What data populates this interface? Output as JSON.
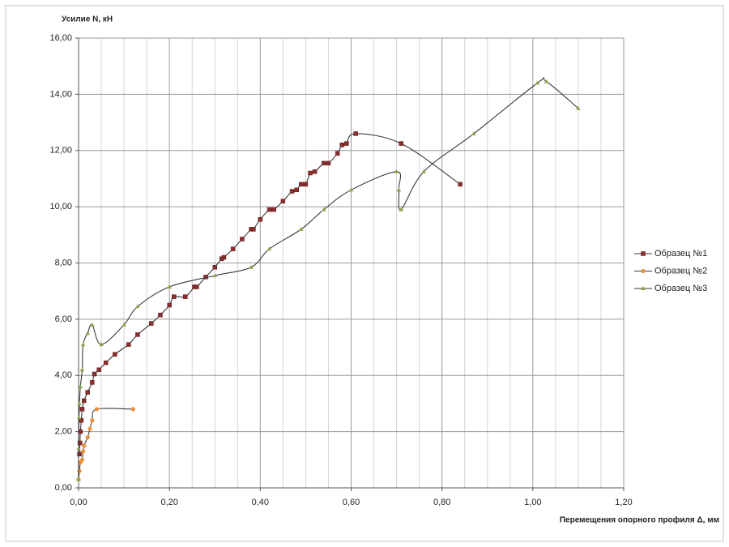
{
  "chart_data": {
    "type": "line",
    "smooth": true,
    "grid": true,
    "ylabel": "Усилие N, кН",
    "xlabel": "Перемещения опорного профиля Δ, мм",
    "xlim": [
      0,
      1.2
    ],
    "xticks": [
      {
        "value": 0,
        "label": "0,00"
      },
      {
        "value": 0.2,
        "label": "0,20"
      },
      {
        "value": 0.4,
        "label": "0,40"
      },
      {
        "value": 0.6,
        "label": "0,60"
      },
      {
        "value": 0.8,
        "label": "0,80"
      },
      {
        "value": 1.0,
        "label": "1,00"
      },
      {
        "value": 1.2,
        "label": "1,20"
      }
    ],
    "ylim": [
      0,
      16
    ],
    "yticks": [
      {
        "value": 0,
        "label": "0,00"
      },
      {
        "value": 2,
        "label": "2,00"
      },
      {
        "value": 4,
        "label": "4,00"
      },
      {
        "value": 6,
        "label": "6,00"
      },
      {
        "value": 8,
        "label": "8,00"
      },
      {
        "value": 10,
        "label": "10,00"
      },
      {
        "value": 12,
        "label": "12,00"
      },
      {
        "value": 14,
        "label": "14,00"
      },
      {
        "value": 16,
        "label": "16,00"
      }
    ],
    "legend": "right",
    "series": [
      {
        "name": "Образец №1",
        "color": "#8b2e2e",
        "marker": "square",
        "x": [
          0.002,
          0.003,
          0.004,
          0.006,
          0.008,
          0.012,
          0.02,
          0.03,
          0.035,
          0.045,
          0.06,
          0.08,
          0.11,
          0.13,
          0.16,
          0.18,
          0.2,
          0.21,
          0.235,
          0.255,
          0.26,
          0.28,
          0.3,
          0.315,
          0.32,
          0.34,
          0.36,
          0.38,
          0.385,
          0.4,
          0.42,
          0.43,
          0.45,
          0.47,
          0.48,
          0.49,
          0.5,
          0.51,
          0.52,
          0.54,
          0.55,
          0.57,
          0.58,
          0.59,
          0.61,
          0.71,
          0.84
        ],
        "values": [
          1.2,
          1.6,
          2.0,
          2.4,
          2.8,
          3.1,
          3.4,
          3.75,
          4.05,
          4.2,
          4.45,
          4.75,
          5.1,
          5.45,
          5.85,
          6.15,
          6.5,
          6.8,
          6.8,
          7.15,
          7.15,
          7.5,
          7.85,
          8.15,
          8.2,
          8.5,
          8.85,
          9.2,
          9.2,
          9.55,
          9.9,
          9.9,
          10.2,
          10.55,
          10.6,
          10.8,
          10.8,
          11.2,
          11.25,
          11.55,
          11.55,
          11.9,
          12.2,
          12.25,
          12.6,
          12.25,
          10.8
        ]
      },
      {
        "name": "Образец №2",
        "color": "#e8923a",
        "marker": "circle",
        "x": [
          0,
          0.002,
          0.004,
          0.008,
          0.01,
          0.012,
          0.02,
          0.025,
          0.03,
          0.04,
          0.12
        ],
        "values": [
          0.3,
          0.6,
          0.9,
          1.0,
          1.3,
          1.5,
          1.8,
          2.1,
          2.4,
          2.8,
          2.8
        ]
      },
      {
        "name": "Образец №3",
        "color": "#8aa64a",
        "marker": "triangle",
        "x": [
          0,
          0,
          0.001,
          0.002,
          0.004,
          0.008,
          0.01,
          0.02,
          0.03,
          0.05,
          0.1,
          0.13,
          0.2,
          0.3,
          0.38,
          0.42,
          0.49,
          0.54,
          0.6,
          0.7,
          0.705,
          0.71,
          0.76,
          0.87,
          1.01,
          1.03,
          1.1
        ],
        "values": [
          0.3,
          1.4,
          2.5,
          3.0,
          3.6,
          4.2,
          5.1,
          5.5,
          5.8,
          5.1,
          5.8,
          6.45,
          7.15,
          7.55,
          7.85,
          8.5,
          9.2,
          9.9,
          10.6,
          11.25,
          10.6,
          9.9,
          11.25,
          12.6,
          14.4,
          14.45,
          13.5
        ]
      }
    ]
  }
}
